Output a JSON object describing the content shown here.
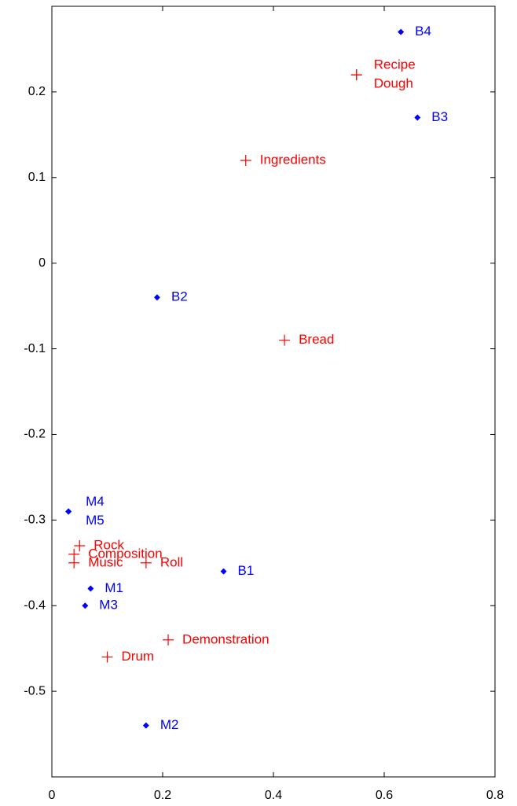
{
  "chart_data": {
    "type": "scatter",
    "xlim": [
      0,
      0.8
    ],
    "xticks": [
      0,
      0.2,
      0.4,
      0.6,
      0.8
    ],
    "ylim": [
      -0.6,
      0.3
    ],
    "yticks": [
      -0.5,
      -0.4,
      -0.3,
      -0.2,
      -0.1,
      0,
      0.1,
      0.2
    ],
    "series": [
      {
        "color": "#ff0000",
        "marker": "plus",
        "labels": [
          "Recipe",
          "Dough",
          "Ingredients",
          "Bread",
          "Rock",
          "Composition",
          "Music",
          "Roll",
          "Demonstration",
          "Drum"
        ],
        "x": [
          0.55,
          0.55,
          0.35,
          0.42,
          0.05,
          0.04,
          0.04,
          0.17,
          0.21,
          0.1
        ],
        "values": [
          0.22,
          0.22,
          0.12,
          -0.09,
          -0.33,
          -0.34,
          -0.35,
          -0.35,
          -0.44,
          -0.46
        ]
      },
      {
        "color": "#0000ff",
        "marker": "dot",
        "labels": [
          "B4",
          "B3",
          "B2",
          "B1",
          "M4",
          "M5",
          "M1",
          "M3",
          "M2"
        ],
        "x": [
          0.63,
          0.66,
          0.19,
          0.31,
          0.03,
          0.03,
          0.07,
          0.06,
          0.17
        ],
        "values": [
          0.27,
          0.17,
          -0.04,
          -0.36,
          -0.29,
          -0.29,
          -0.38,
          -0.4,
          -0.54
        ]
      }
    ]
  }
}
